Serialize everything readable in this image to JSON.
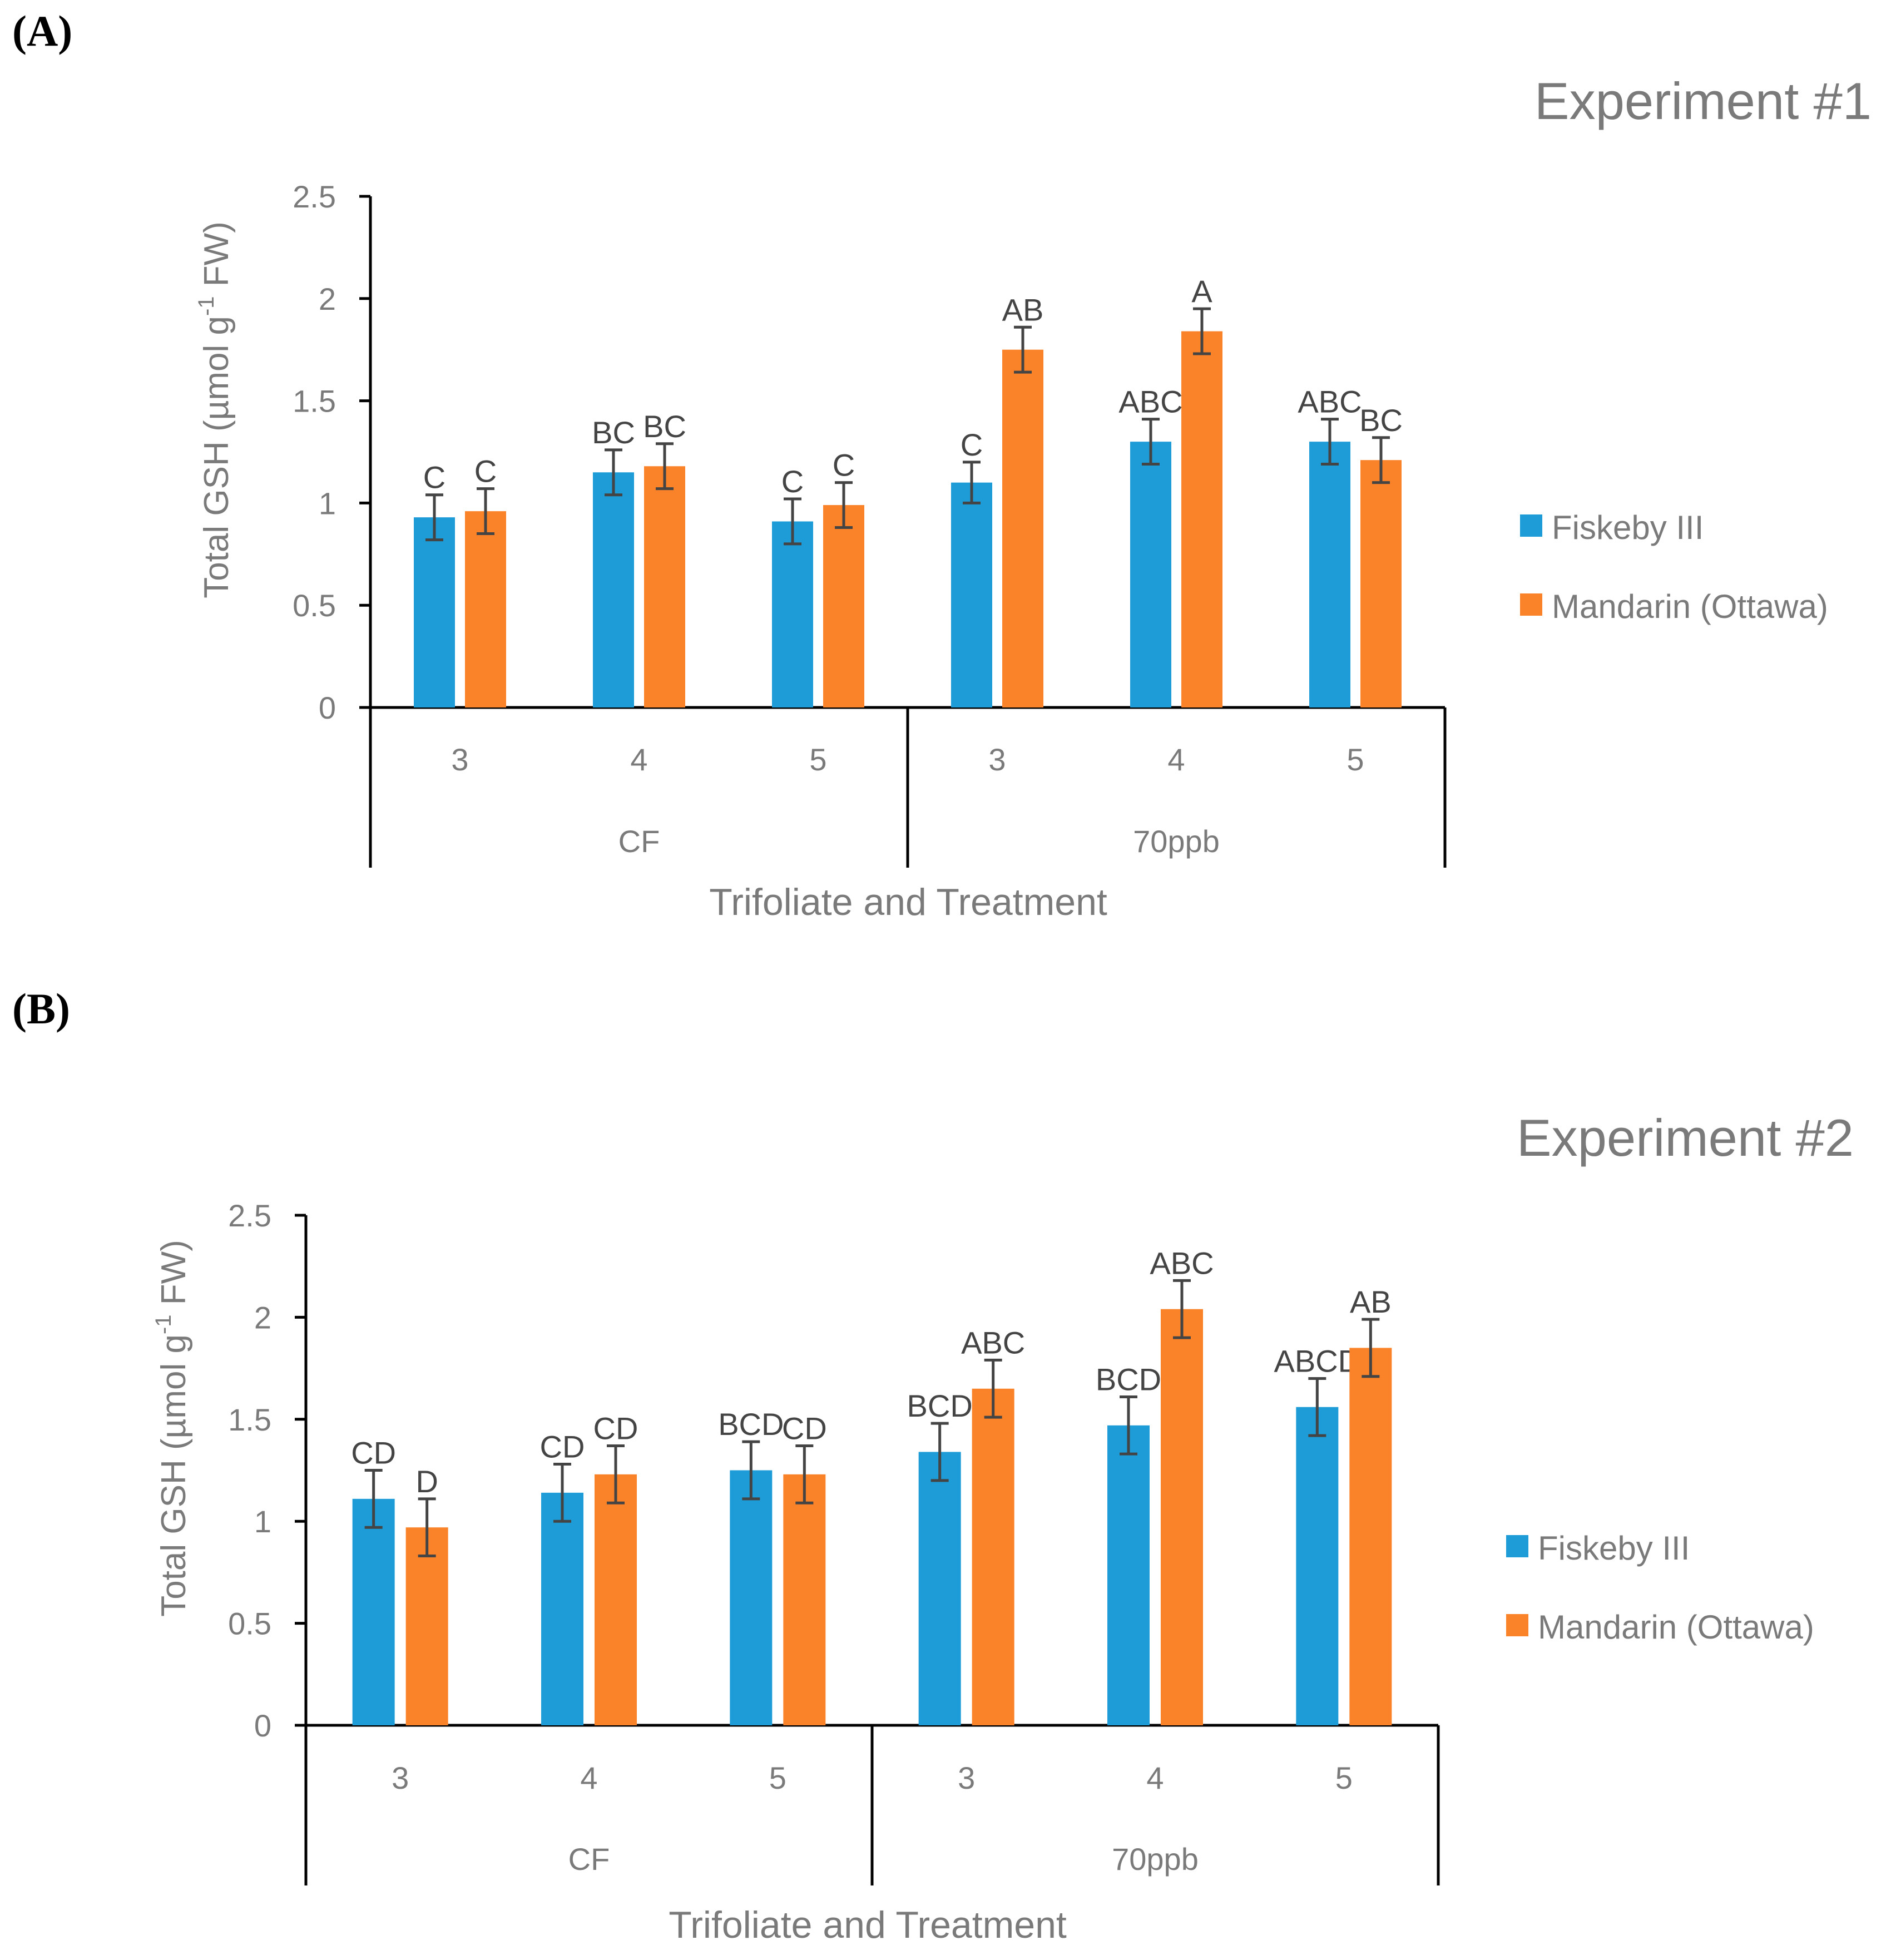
{
  "colors": {
    "series1": "#1E9CD7",
    "series2": "#FA8228",
    "text": "#7a7a7a",
    "annotation": "#444444",
    "axis": "#000000"
  },
  "chart_data": [
    {
      "type": "bar",
      "panel_label": "(A)",
      "title": "Experiment #1",
      "ylabel_main": "Total GSH (µmol g",
      "ylabel_sup": "-1",
      "ylabel_tail": " FW)",
      "xlabel": "Trifoliate and Treatment",
      "ylim": [
        0,
        2.5
      ],
      "yticks": [
        "0",
        "0.5",
        "1",
        "1.5",
        "2",
        "2.5"
      ],
      "categories": [
        "3",
        "4",
        "5",
        "3",
        "4",
        "5"
      ],
      "groups": [
        {
          "label": "CF",
          "span": 3
        },
        {
          "label": "70ppb",
          "span": 3
        }
      ],
      "series": [
        {
          "name": "Fiskeby III",
          "values": [
            0.93,
            1.15,
            0.91,
            1.1,
            1.3,
            1.3
          ],
          "errors": [
            0.11,
            0.11,
            0.11,
            0.1,
            0.11,
            0.11
          ],
          "letters": [
            "C",
            "BC",
            "C",
            "C",
            "ABC",
            "ABC"
          ]
        },
        {
          "name": "Mandarin (Ottawa)",
          "values": [
            0.96,
            1.18,
            0.99,
            1.75,
            1.84,
            1.21
          ],
          "errors": [
            0.11,
            0.11,
            0.11,
            0.11,
            0.11,
            0.11
          ],
          "letters": [
            "C",
            "BC",
            "C",
            "AB",
            "A",
            "BC"
          ]
        }
      ]
    },
    {
      "type": "bar",
      "panel_label": "(B)",
      "title": "Experiment #2",
      "ylabel_main": "Total GSH (µmol g",
      "ylabel_sup": "-1",
      "ylabel_tail": " FW)",
      "xlabel": "Trifoliate and Treatment",
      "ylim": [
        0,
        2.5
      ],
      "yticks": [
        "0",
        "0.5",
        "1",
        "1.5",
        "2",
        "2.5"
      ],
      "categories": [
        "3",
        "4",
        "5",
        "3",
        "4",
        "5"
      ],
      "groups": [
        {
          "label": "CF",
          "span": 3
        },
        {
          "label": "70ppb",
          "span": 3
        }
      ],
      "series": [
        {
          "name": "Fiskeby III",
          "values": [
            1.11,
            1.14,
            1.25,
            1.34,
            1.47,
            1.56
          ],
          "errors": [
            0.14,
            0.14,
            0.14,
            0.14,
            0.14,
            0.14
          ],
          "letters": [
            "CD",
            "CD",
            "BCD",
            "BCD",
            "BCD",
            "ABCD"
          ]
        },
        {
          "name": "Mandarin (Ottawa)",
          "values": [
            0.97,
            1.23,
            1.23,
            1.65,
            2.04,
            1.85
          ],
          "errors": [
            0.14,
            0.14,
            0.14,
            0.14,
            0.14,
            0.14
          ],
          "letters": [
            "D",
            "CD",
            "CD",
            "ABC",
            "ABC",
            "AB"
          ]
        }
      ]
    }
  ]
}
